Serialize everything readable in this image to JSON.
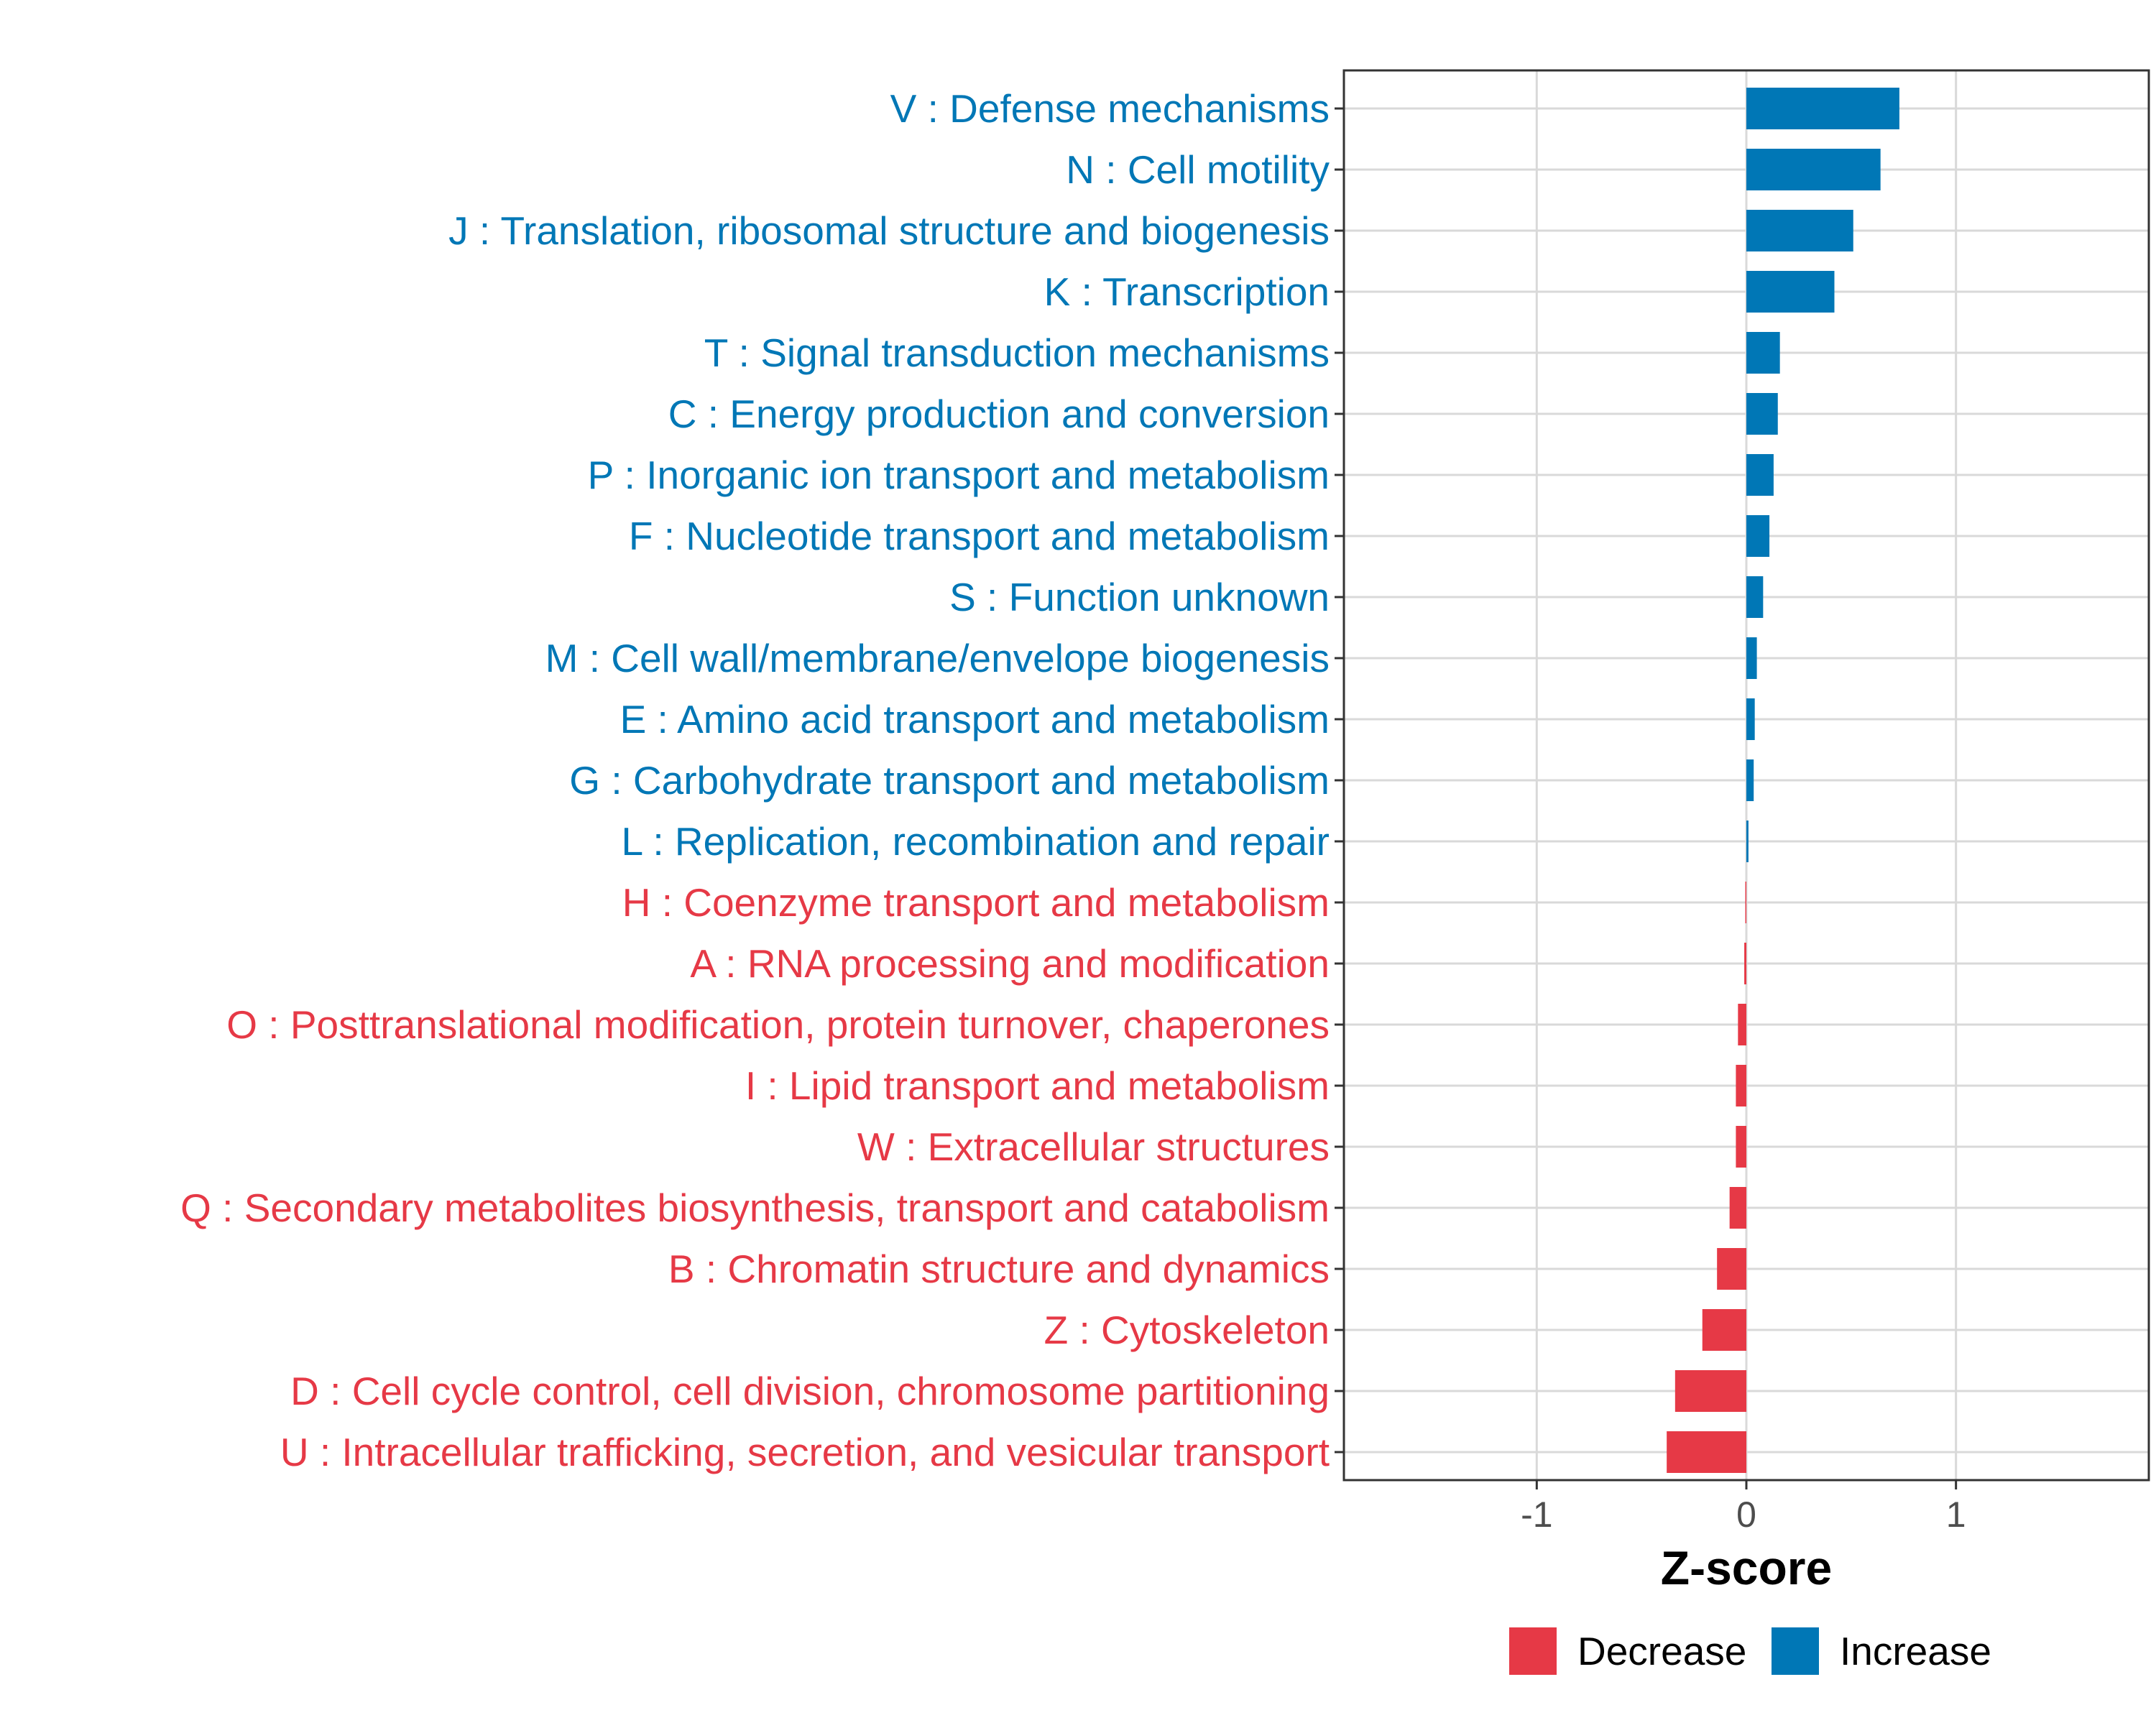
{
  "chart_data": {
    "type": "bar",
    "orientation": "horizontal",
    "title": "",
    "xlabel": "Z-score",
    "ylabel": "",
    "xlim": [
      -1.92,
      1.92
    ],
    "xticks": [
      -1,
      0,
      1
    ],
    "xtick_labels": [
      "-1",
      "0",
      "1"
    ],
    "grid": true,
    "legend_position": "bottom",
    "legend": [
      {
        "label": "Decrease",
        "color": "#E63946"
      },
      {
        "label": "Increase",
        "color": "#0077B6"
      }
    ],
    "colors": {
      "Increase": "#0077B6",
      "Decrease": "#E63946",
      "grid": "#D9D9D9",
      "axis": "#333333"
    },
    "bars": [
      {
        "label": "V : Defense mechanisms",
        "value": 0.73,
        "direction": "Increase"
      },
      {
        "label": "N : Cell motility",
        "value": 0.64,
        "direction": "Increase"
      },
      {
        "label": "J : Translation, ribosomal structure and biogenesis",
        "value": 0.51,
        "direction": "Increase"
      },
      {
        "label": "K : Transcription",
        "value": 0.42,
        "direction": "Increase"
      },
      {
        "label": "T : Signal transduction mechanisms",
        "value": 0.16,
        "direction": "Increase"
      },
      {
        "label": "C : Energy production and conversion",
        "value": 0.15,
        "direction": "Increase"
      },
      {
        "label": "P : Inorganic ion transport and metabolism",
        "value": 0.13,
        "direction": "Increase"
      },
      {
        "label": "F : Nucleotide transport and metabolism",
        "value": 0.11,
        "direction": "Increase"
      },
      {
        "label": "S : Function unknown",
        "value": 0.08,
        "direction": "Increase"
      },
      {
        "label": "M : Cell wall/membrane/envelope biogenesis",
        "value": 0.05,
        "direction": "Increase"
      },
      {
        "label": "E : Amino acid transport and metabolism",
        "value": 0.04,
        "direction": "Increase"
      },
      {
        "label": "G : Carbohydrate transport and metabolism",
        "value": 0.035,
        "direction": "Increase"
      },
      {
        "label": "L : Replication, recombination and repair",
        "value": 0.01,
        "direction": "Increase"
      },
      {
        "label": "H : Coenzyme transport and metabolism",
        "value": -0.005,
        "direction": "Decrease"
      },
      {
        "label": "A : RNA processing and modification",
        "value": -0.01,
        "direction": "Decrease"
      },
      {
        "label": "O : Posttranslational modification, protein turnover, chaperones",
        "value": -0.04,
        "direction": "Decrease"
      },
      {
        "label": "I : Lipid transport and metabolism",
        "value": -0.05,
        "direction": "Decrease"
      },
      {
        "label": "W : Extracellular structures",
        "value": -0.05,
        "direction": "Decrease"
      },
      {
        "label": "Q : Secondary metabolites biosynthesis, transport and catabolism",
        "value": -0.08,
        "direction": "Decrease"
      },
      {
        "label": "B : Chromatin structure and dynamics",
        "value": -0.14,
        "direction": "Decrease"
      },
      {
        "label": "Z : Cytoskeleton",
        "value": -0.21,
        "direction": "Decrease"
      },
      {
        "label": "D : Cell cycle control, cell division, chromosome partitioning",
        "value": -0.34,
        "direction": "Decrease"
      },
      {
        "label": "U : Intracellular trafficking, secretion, and vesicular transport",
        "value": -0.38,
        "direction": "Decrease"
      }
    ]
  }
}
